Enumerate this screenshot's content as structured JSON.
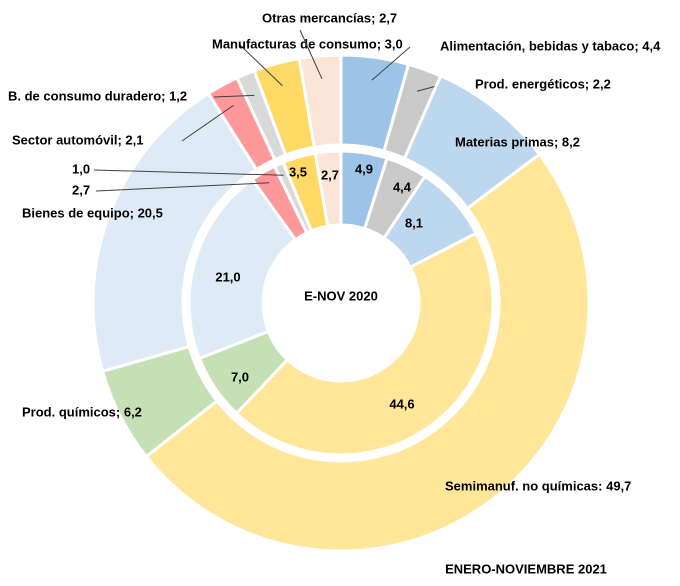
{
  "chart_data": {
    "type": "donut",
    "colors": [
      "#9dc3e6",
      "#c9c9c9",
      "#bdd7ee",
      "#ffe699",
      "#c5e0b4",
      "#deebf7",
      "#ff9999",
      "#d9d9d9",
      "#ffd966",
      "#fbe5d6"
    ],
    "series": [
      {
        "name": "ENERO-NOVIEMBRE 2021",
        "values": [
          4.4,
          2.2,
          8.2,
          49.7,
          6.2,
          20.5,
          2.1,
          1.2,
          3.0,
          2.7
        ],
        "value_labels": [
          "Alimentación, bebidas y tabaco; 4,4",
          "Prod. energéticos; 2,2",
          "Materias primas; 8,2",
          "Semimanuf. no químicas: 49,7",
          "Prod. químicos; 6,2",
          "Bienes de equipo; 20,5",
          "Sector automóvil; 2,1",
          "B. de consumo duradero; 1,2",
          "Manufacturas de consumo; 3,0",
          "Otras mercancías; 2,7"
        ]
      },
      {
        "name": "E-NOV 2020",
        "values": [
          4.9,
          4.4,
          8.1,
          44.6,
          7.0,
          21.0,
          2.7,
          1.0,
          3.5,
          2.7
        ],
        "value_labels": [
          "4,9",
          "4,4",
          "8,1",
          "44,6",
          "7,0",
          "21,0",
          "2,7",
          "1,0",
          "3,5",
          "2,7"
        ]
      }
    ]
  }
}
